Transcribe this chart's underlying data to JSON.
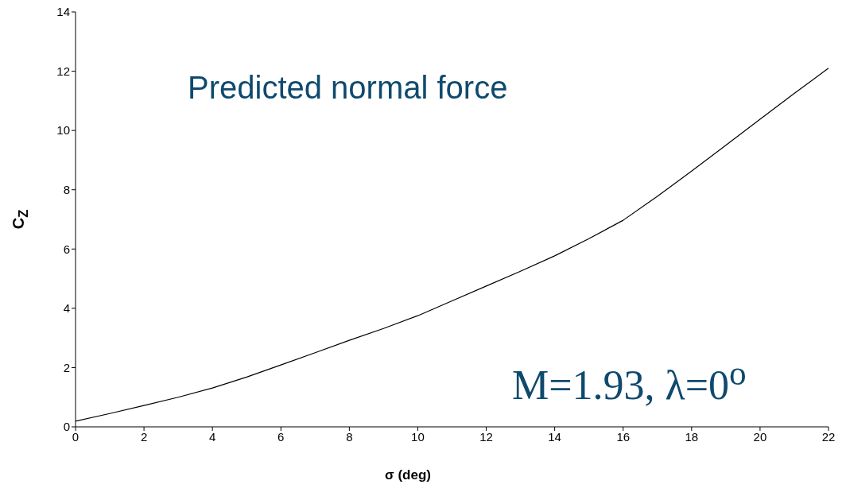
{
  "chart_data": {
    "type": "line",
    "xlabel": "σ (deg)",
    "ylabel": "C$_{Z}$",
    "annotations": [
      "Predicted normal force",
      "M=1.93, λ=0$^{o}$"
    ],
    "x": [
      0,
      1,
      2,
      3,
      4,
      5,
      6,
      7,
      8,
      9,
      10,
      11,
      12,
      13,
      14,
      15,
      16,
      17,
      18,
      19,
      20,
      21,
      22
    ],
    "series": [
      {
        "color": "#000000",
        "values": [
          0.19,
          0.45,
          0.72,
          1.0,
          1.31,
          1.68,
          2.09,
          2.5,
          2.92,
          3.32,
          3.75,
          4.25,
          4.75,
          5.25,
          5.77,
          6.35,
          6.97,
          7.78,
          8.63,
          9.5,
          10.38,
          11.25,
          12.1
        ]
      }
    ],
    "xlim": [
      0,
      22
    ],
    "xticks": [
      0,
      2,
      4,
      6,
      8,
      10,
      12,
      14,
      16,
      18,
      20,
      22
    ],
    "ylim": [
      0,
      14
    ],
    "yticks": [
      0,
      2,
      4,
      6,
      8,
      10,
      12,
      14
    ],
    "grid": false,
    "legend": false,
    "marker": "none",
    "line_style": "solid"
  }
}
